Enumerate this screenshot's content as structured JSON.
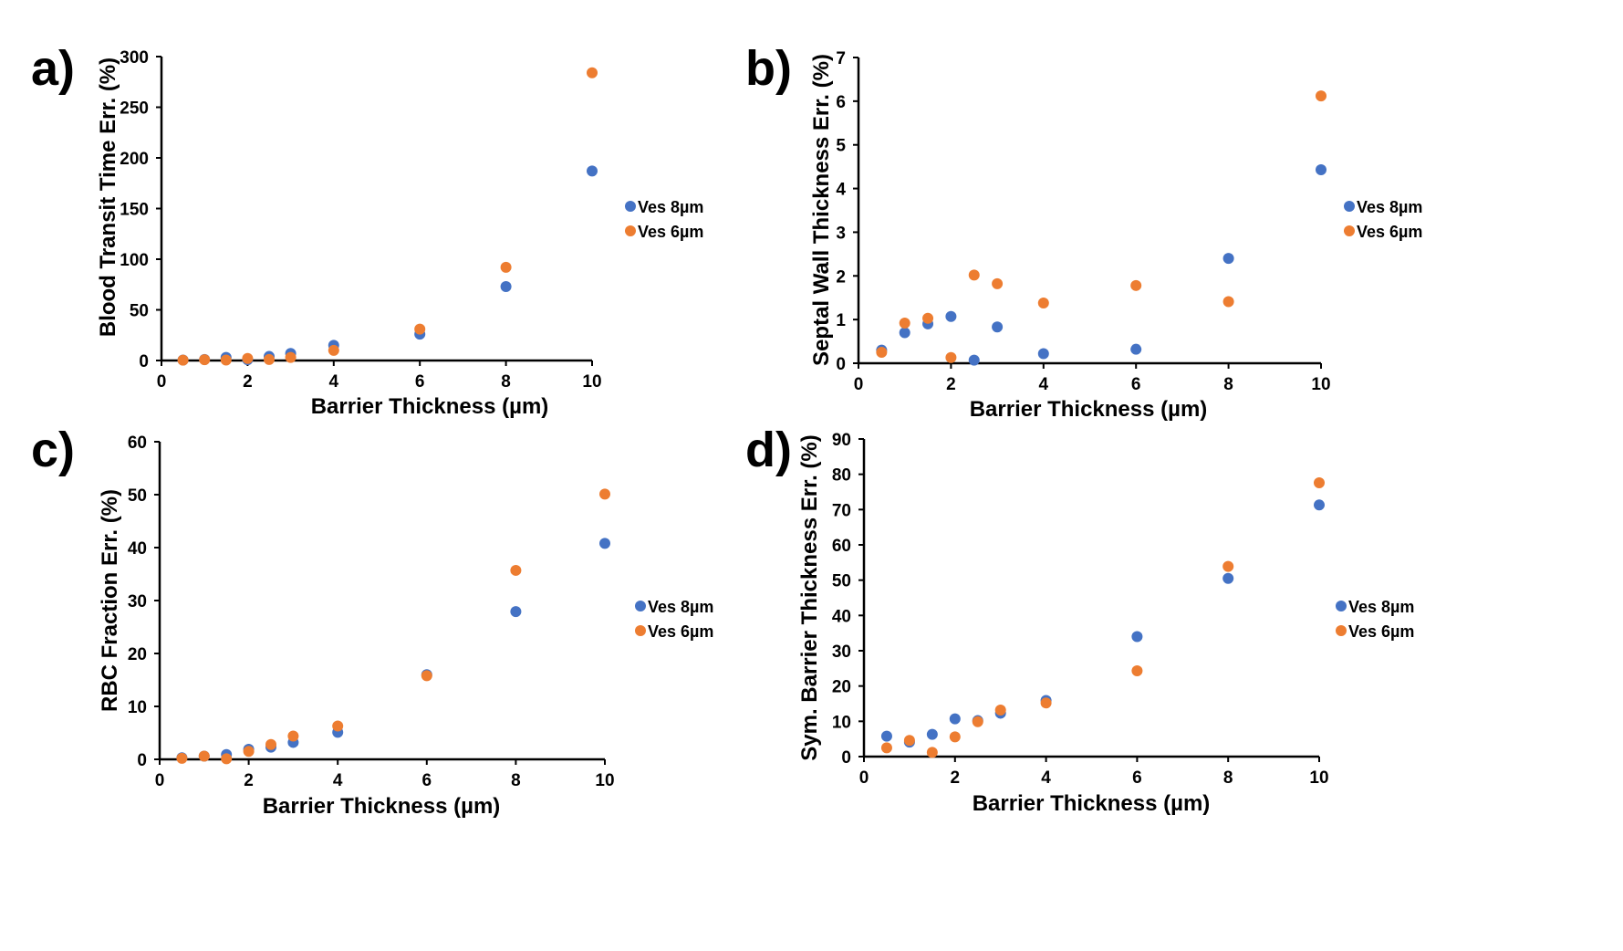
{
  "colors": {
    "ves8": "#4472C4",
    "ves6": "#ED7D31"
  },
  "chart_data": [
    {
      "type": "scatter",
      "panel_label": "a)",
      "title": "",
      "xlabel": "Barrier  Thickness (µm)",
      "ylabel": "Blood Transit Time Err. (%)",
      "xlim": [
        0,
        10
      ],
      "ylim": [
        0,
        300
      ],
      "x_ticks": [
        0,
        2,
        4,
        6,
        8,
        10
      ],
      "y_ticks": [
        0,
        50,
        100,
        150,
        200,
        250,
        300
      ],
      "grid": false,
      "legend_position": "right",
      "x": [
        0.5,
        1,
        1.5,
        2,
        2.5,
        3,
        4,
        6,
        8,
        10
      ],
      "series": [
        {
          "name": "Ves 8µm",
          "values": [
            0.5,
            1,
            3,
            0.8,
            4,
            7,
            15,
            26,
            73,
            187
          ]
        },
        {
          "name": "Ves 6µm",
          "values": [
            0.3,
            0.8,
            0.5,
            2,
            1,
            3,
            10,
            31,
            92,
            284
          ]
        }
      ]
    },
    {
      "type": "scatter",
      "panel_label": "b)",
      "title": "",
      "xlabel": "Barrier  Thickness (µm)",
      "ylabel": "Septal Wall Thickness Err. (%)",
      "xlim": [
        0,
        10
      ],
      "ylim": [
        0,
        7
      ],
      "x_ticks": [
        0,
        2,
        4,
        6,
        8,
        10
      ],
      "y_ticks": [
        0,
        1,
        2,
        3,
        4,
        5,
        6,
        7
      ],
      "grid": false,
      "legend_position": "right",
      "x": [
        0.5,
        1,
        1.5,
        2,
        2.5,
        3,
        4,
        6,
        8,
        10
      ],
      "series": [
        {
          "name": "Ves 8µm",
          "values": [
            0.3,
            0.7,
            0.9,
            1.07,
            0.07,
            0.83,
            0.22,
            0.32,
            2.4,
            4.43
          ]
        },
        {
          "name": "Ves 6µm",
          "values": [
            0.25,
            0.92,
            1.03,
            0.13,
            2.02,
            1.82,
            1.38,
            1.78,
            1.41,
            6.12
          ]
        }
      ]
    },
    {
      "type": "scatter",
      "panel_label": "c)",
      "title": "",
      "xlabel": "Barrier  Thickness (µm)",
      "ylabel": "RBC Fraction Err. (%)",
      "xlim": [
        0,
        10
      ],
      "ylim": [
        0,
        60
      ],
      "x_ticks": [
        0,
        2,
        4,
        6,
        8,
        10
      ],
      "y_ticks": [
        0,
        10,
        20,
        30,
        40,
        50,
        60
      ],
      "grid": false,
      "legend_position": "right",
      "x": [
        0.5,
        1,
        1.5,
        2,
        2.5,
        3,
        4,
        6,
        8,
        10
      ],
      "series": [
        {
          "name": "Ves 8µm",
          "values": [
            0.3,
            0.6,
            0.9,
            1.9,
            2.3,
            3.2,
            5.1,
            16.0,
            27.9,
            40.8
          ]
        },
        {
          "name": "Ves 6µm",
          "values": [
            0.2,
            0.6,
            0.1,
            1.5,
            2.8,
            4.4,
            6.3,
            15.8,
            35.7,
            50.1
          ]
        }
      ]
    },
    {
      "type": "scatter",
      "panel_label": "d)",
      "title": "",
      "xlabel": "Barrier  Thickness (µm)",
      "ylabel": "Sym. Barrier Thickness Err. (%)",
      "xlim": [
        0,
        10
      ],
      "ylim": [
        0,
        90
      ],
      "x_ticks": [
        0,
        2,
        4,
        6,
        8,
        10
      ],
      "y_ticks": [
        0,
        10,
        20,
        30,
        40,
        50,
        60,
        70,
        80,
        90
      ],
      "grid": false,
      "legend_position": "right",
      "x": [
        0.5,
        1,
        1.5,
        2,
        2.5,
        3,
        4,
        6,
        8,
        10
      ],
      "series": [
        {
          "name": "Ves 8µm",
          "values": [
            5.8,
            4.1,
            6.3,
            10.7,
            10.2,
            12.3,
            15.9,
            34.0,
            50.5,
            71.3
          ]
        },
        {
          "name": "Ves 6µm",
          "values": [
            2.5,
            4.6,
            1.2,
            5.6,
            9.9,
            13.2,
            15.2,
            24.3,
            53.9,
            77.6
          ]
        }
      ]
    }
  ]
}
